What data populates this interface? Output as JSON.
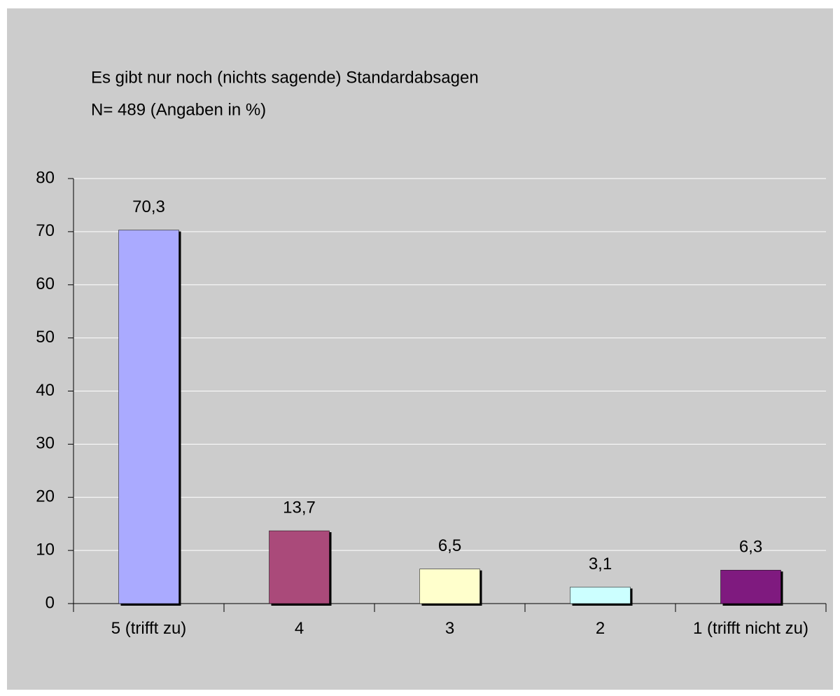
{
  "chart_data": {
    "type": "bar",
    "title": "Es gibt nur noch (nichts sagende) Standardabsagen",
    "subtitle": "N= 489 (Angaben in %)",
    "categories": [
      "5 (trifft zu)",
      "4",
      "3",
      "2",
      "1 (trifft nicht zu)"
    ],
    "values": [
      70.3,
      13.7,
      6.5,
      3.1,
      6.3
    ],
    "value_labels": [
      "70,3",
      "13,7",
      "6,5",
      "3,1",
      "6,3"
    ],
    "colors": [
      "#aaaaff",
      "#aa4a7a",
      "#ffffcc",
      "#ccffff",
      "#7f1a7f"
    ],
    "ylim": [
      0,
      80
    ],
    "yticks": [
      0,
      10,
      20,
      30,
      40,
      50,
      60,
      70,
      80
    ],
    "grid": true
  }
}
